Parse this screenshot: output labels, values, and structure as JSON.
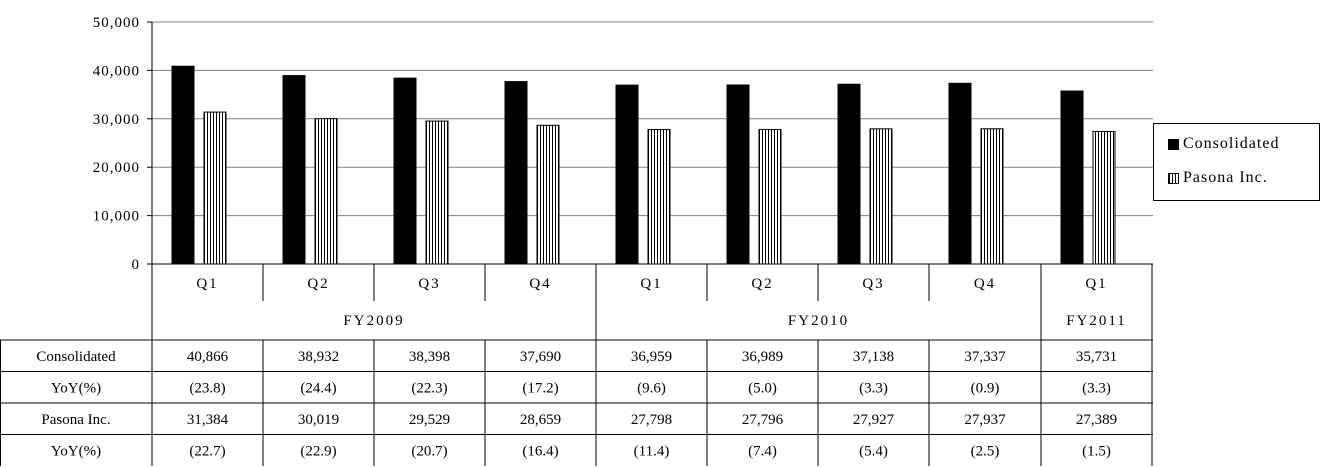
{
  "chart_data": {
    "type": "bar",
    "ylim": [
      0,
      50000
    ],
    "y_ticks": [
      "50,000",
      "40,000",
      "30,000",
      "20,000",
      "10,000",
      "0"
    ],
    "grid": true,
    "legend_position": "right",
    "categories": [
      "Q1",
      "Q2",
      "Q3",
      "Q4",
      "Q1",
      "Q2",
      "Q3",
      "Q4",
      "Q1"
    ],
    "fiscal_years": [
      {
        "label": "FY2009",
        "span": 4
      },
      {
        "label": "FY2010",
        "span": 4
      },
      {
        "label": "FY2011",
        "span": 1
      }
    ],
    "series": [
      {
        "name": "Consolidated",
        "color": "#000000",
        "pattern": "solid",
        "values": [
          40866,
          38932,
          38398,
          37690,
          36959,
          36989,
          37138,
          37337,
          35731
        ]
      },
      {
        "name": "Pasona Inc.",
        "color": "#000000",
        "pattern": "vertical-stripes",
        "values": [
          31384,
          30019,
          29529,
          28659,
          27798,
          27796,
          27927,
          27937,
          27389
        ]
      }
    ],
    "table": {
      "rows": [
        {
          "label": "Consolidated",
          "cells": [
            "40,866",
            "38,932",
            "38,398",
            "37,690",
            "36,959",
            "36,989",
            "37,138",
            "37,337",
            "35,731"
          ]
        },
        {
          "label": "YoY(%)",
          "cells": [
            "(23.8)",
            "(24.4)",
            "(22.3)",
            "(17.2)",
            "(9.6)",
            "(5.0)",
            "(3.3)",
            "(0.9)",
            "(3.3)"
          ]
        },
        {
          "label": "Pasona Inc.",
          "cells": [
            "31,384",
            "30,019",
            "29,529",
            "28,659",
            "27,798",
            "27,796",
            "27,927",
            "27,937",
            "27,389"
          ]
        },
        {
          "label": "YoY(%)",
          "cells": [
            "(22.7)",
            "(22.9)",
            "(20.7)",
            "(16.4)",
            "(11.4)",
            "(7.4)",
            "(5.4)",
            "(2.5)",
            "(1.5)"
          ]
        }
      ]
    }
  }
}
